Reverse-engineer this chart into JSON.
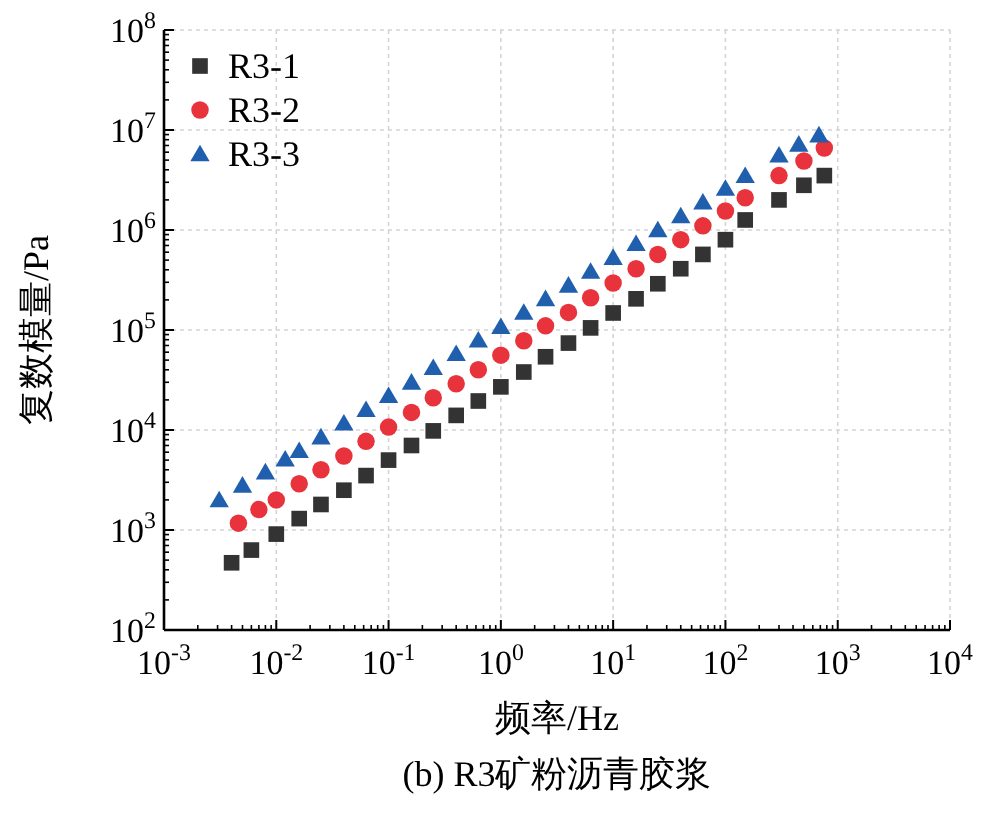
{
  "chart_data": {
    "type": "scatter",
    "title": "(b) R3矿粉沥青胶浆",
    "xlabel": "频率/Hz",
    "ylabel": "复数模量/Pa",
    "log": "xy",
    "grid": true,
    "legend": "top left",
    "xlim": [
      0.001,
      10000
    ],
    "ylim": [
      100,
      100000000
    ],
    "xticks": [
      {
        "value": 0.001,
        "label": "10$^{-3}$"
      },
      {
        "value": 0.01,
        "label": "10$^{-2}$"
      },
      {
        "value": 0.1,
        "label": "10$^{-1}$"
      },
      {
        "value": 1,
        "label": "10$^{0}$"
      },
      {
        "value": 10,
        "label": "10$^{1}$"
      },
      {
        "value": 100,
        "label": "10$^{2}$"
      },
      {
        "value": 1000,
        "label": "10$^{3}$"
      },
      {
        "value": 10000,
        "label": "10$^{4}$"
      }
    ],
    "yticks": [
      {
        "value": 100,
        "label": "10$^{2}$"
      },
      {
        "value": 1000,
        "label": "10$^{3}$"
      },
      {
        "value": 10000,
        "label": "10$^{4}$"
      },
      {
        "value": 100000,
        "label": "10$^{5}$"
      },
      {
        "value": 1000000,
        "label": "10$^{6}$"
      },
      {
        "value": 10000000,
        "label": "10$^{7}$"
      },
      {
        "value": 100000000,
        "label": "10$^{8}$"
      }
    ],
    "series": [
      {
        "name": "R3-1",
        "color": "#333333",
        "marker": "square",
        "x": [
          0.004,
          0.006,
          0.01,
          0.016,
          0.025,
          0.04,
          0.063,
          0.1,
          0.16,
          0.25,
          0.4,
          0.63,
          1,
          1.6,
          2.5,
          4,
          6.3,
          10,
          16,
          25,
          40,
          63,
          100,
          150,
          300,
          500,
          760
        ],
        "values": [
          470,
          630,
          910,
          1300,
          1800,
          2500,
          3500,
          5000,
          7000,
          9800,
          14000,
          19500,
          27000,
          38000,
          54000,
          74000,
          105000,
          148000,
          205000,
          290000,
          410000,
          570000,
          800000,
          1260000,
          2000000,
          2800000,
          3500000
        ]
      },
      {
        "name": "R3-2",
        "color": "#e8333c",
        "marker": "circle",
        "x": [
          0.0046,
          0.007,
          0.01,
          0.016,
          0.025,
          0.04,
          0.063,
          0.1,
          0.16,
          0.25,
          0.4,
          0.63,
          1,
          1.6,
          2.5,
          4,
          6.3,
          10,
          16,
          25,
          40,
          63,
          100,
          150,
          300,
          500,
          760
        ],
        "values": [
          1170,
          1600,
          2000,
          2900,
          4000,
          5500,
          7700,
          10700,
          15000,
          21000,
          29000,
          40000,
          56000,
          78000,
          110000,
          150000,
          210000,
          295000,
          410000,
          570000,
          800000,
          1100000,
          1550000,
          2100000,
          3500000,
          4900000,
          6600000
        ]
      },
      {
        "name": "R3-3",
        "color": "#1f5fad",
        "marker": "triangle",
        "x": [
          0.0031,
          0.005,
          0.008,
          0.012,
          0.016,
          0.025,
          0.04,
          0.063,
          0.1,
          0.16,
          0.25,
          0.4,
          0.63,
          1,
          1.6,
          2.5,
          4,
          6.3,
          10,
          16,
          25,
          40,
          63,
          100,
          150,
          300,
          450,
          680
        ],
        "values": [
          2000,
          2800,
          3800,
          5100,
          6200,
          8500,
          11700,
          16000,
          22000,
          30000,
          42000,
          58000,
          79000,
          108000,
          150000,
          205000,
          280000,
          385000,
          530000,
          730000,
          1000000,
          1380000,
          1900000,
          2600000,
          3500000,
          5600000,
          7200000,
          8900000
        ]
      }
    ]
  }
}
